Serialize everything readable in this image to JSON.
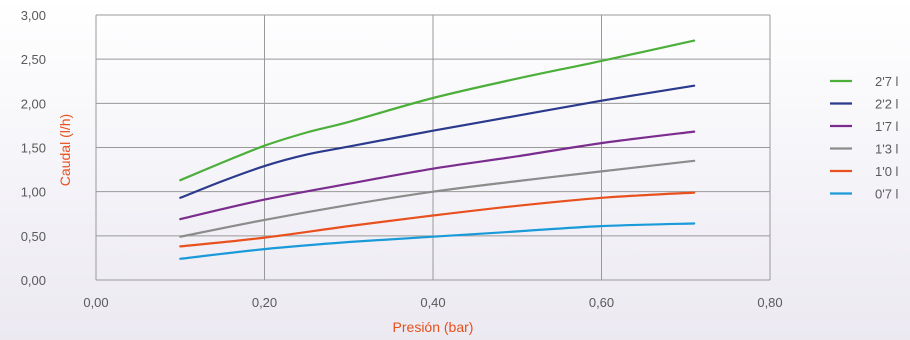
{
  "chart_data": {
    "type": "line",
    "xlabel": "Presión (bar)",
    "ylabel": "Caudal (l/h)",
    "xlim": [
      0,
      0.8
    ],
    "ylim": [
      0,
      3
    ],
    "x_ticks": [
      "0,00",
      "0,20",
      "0,40",
      "0,60",
      "0,80"
    ],
    "y_ticks": [
      "0,00",
      "0,50",
      "1,00",
      "1,50",
      "2,00",
      "2,50",
      "3,00"
    ],
    "grid": true,
    "legend_position": "right",
    "series": [
      {
        "name": "2'7 l",
        "color": "#4caf3a",
        "x": [
          0.1,
          0.15,
          0.2,
          0.25,
          0.3,
          0.4,
          0.5,
          0.6,
          0.71
        ],
        "y": [
          1.13,
          1.33,
          1.52,
          1.67,
          1.79,
          2.06,
          2.28,
          2.48,
          2.71
        ]
      },
      {
        "name": "2'2 l",
        "color": "#2b3a8c",
        "x": [
          0.1,
          0.15,
          0.2,
          0.25,
          0.3,
          0.4,
          0.5,
          0.6,
          0.71
        ],
        "y": [
          0.93,
          1.12,
          1.29,
          1.42,
          1.51,
          1.69,
          1.86,
          2.03,
          2.2
        ]
      },
      {
        "name": "1'7 l",
        "color": "#7b2d8e",
        "x": [
          0.1,
          0.2,
          0.3,
          0.4,
          0.5,
          0.6,
          0.71
        ],
        "y": [
          0.69,
          0.91,
          1.09,
          1.26,
          1.4,
          1.55,
          1.68
        ]
      },
      {
        "name": "1'3 l",
        "color": "#8c8c8c",
        "x": [
          0.1,
          0.2,
          0.3,
          0.4,
          0.5,
          0.6,
          0.71
        ],
        "y": [
          0.49,
          0.68,
          0.85,
          1.0,
          1.12,
          1.23,
          1.35
        ]
      },
      {
        "name": "1'0 l",
        "color": "#e8501e",
        "x": [
          0.1,
          0.2,
          0.3,
          0.4,
          0.5,
          0.6,
          0.71
        ],
        "y": [
          0.38,
          0.48,
          0.61,
          0.73,
          0.84,
          0.93,
          0.99
        ]
      },
      {
        "name": "0'7 l",
        "color": "#1a9ad8",
        "x": [
          0.1,
          0.2,
          0.3,
          0.4,
          0.5,
          0.6,
          0.71
        ],
        "y": [
          0.24,
          0.35,
          0.43,
          0.49,
          0.55,
          0.61,
          0.64
        ]
      }
    ]
  },
  "colors": {
    "axis_title": "#e8501e",
    "grid": "#999999",
    "tick_text": "#5a5a5a"
  }
}
